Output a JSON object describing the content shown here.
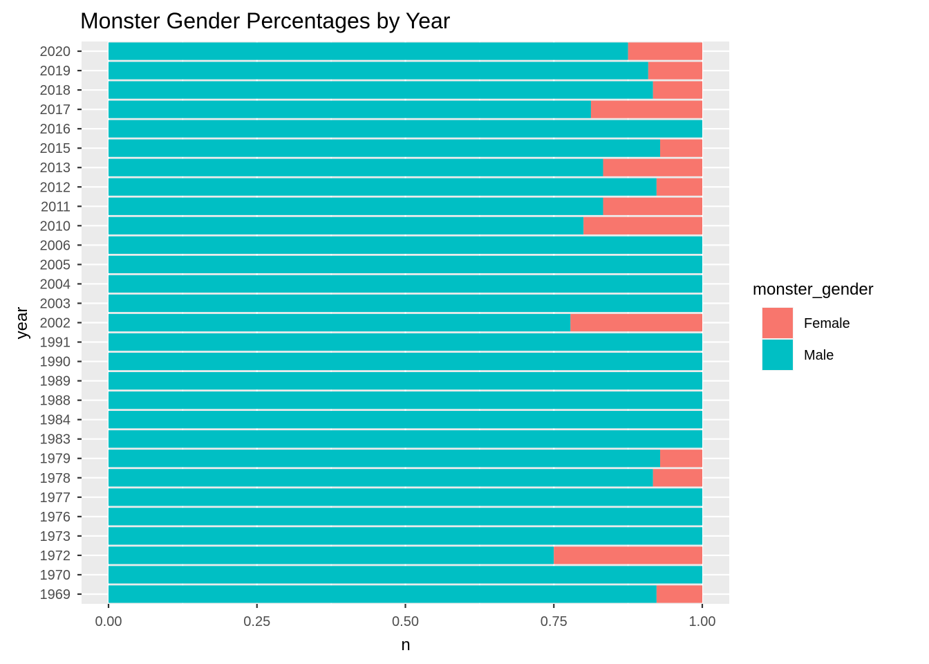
{
  "chart_data": {
    "type": "bar",
    "orientation": "horizontal",
    "stacked": true,
    "title": "Monster Gender Percentages by Year",
    "xlabel": "n",
    "ylabel": "year",
    "xlim": [
      0,
      1
    ],
    "xticks": [
      "0.00",
      "0.25",
      "0.50",
      "0.75",
      "1.00"
    ],
    "xtick_values": [
      0,
      0.25,
      0.5,
      0.75,
      1.0
    ],
    "grid": true,
    "legend": {
      "title": "monster_gender",
      "placement": "right",
      "items": [
        {
          "label": "Female",
          "color": "#F8766D"
        },
        {
          "label": "Male",
          "color": "#00BFC4"
        }
      ]
    },
    "categories": [
      "2020",
      "2019",
      "2018",
      "2017",
      "2016",
      "2015",
      "2013",
      "2012",
      "2011",
      "2010",
      "2006",
      "2005",
      "2004",
      "2003",
      "2002",
      "1991",
      "1990",
      "1989",
      "1988",
      "1984",
      "1983",
      "1979",
      "1978",
      "1977",
      "1976",
      "1973",
      "1972",
      "1970",
      "1969"
    ],
    "series": [
      {
        "name": "Male",
        "color": "#00BFC4",
        "values": [
          0.875,
          0.909,
          0.917,
          0.8125,
          1.0,
          0.929,
          0.833,
          0.923,
          0.833,
          0.8,
          1.0,
          1.0,
          1.0,
          1.0,
          0.778,
          1.0,
          1.0,
          1.0,
          1.0,
          1.0,
          1.0,
          0.929,
          0.917,
          1.0,
          1.0,
          1.0,
          0.75,
          1.0,
          0.923
        ]
      },
      {
        "name": "Female",
        "color": "#F8766D",
        "values": [
          0.125,
          0.091,
          0.083,
          0.1875,
          0.0,
          0.071,
          0.167,
          0.077,
          0.167,
          0.2,
          0.0,
          0.0,
          0.0,
          0.0,
          0.222,
          0.0,
          0.0,
          0.0,
          0.0,
          0.0,
          0.0,
          0.071,
          0.083,
          0.0,
          0.0,
          0.0,
          0.25,
          0.0,
          0.077
        ]
      }
    ],
    "colors": {
      "panel_background": "#EBEBEB",
      "grid_major": "#FFFFFF",
      "tick_text": "#4D4D4D",
      "tick_mark": "#333333"
    }
  }
}
